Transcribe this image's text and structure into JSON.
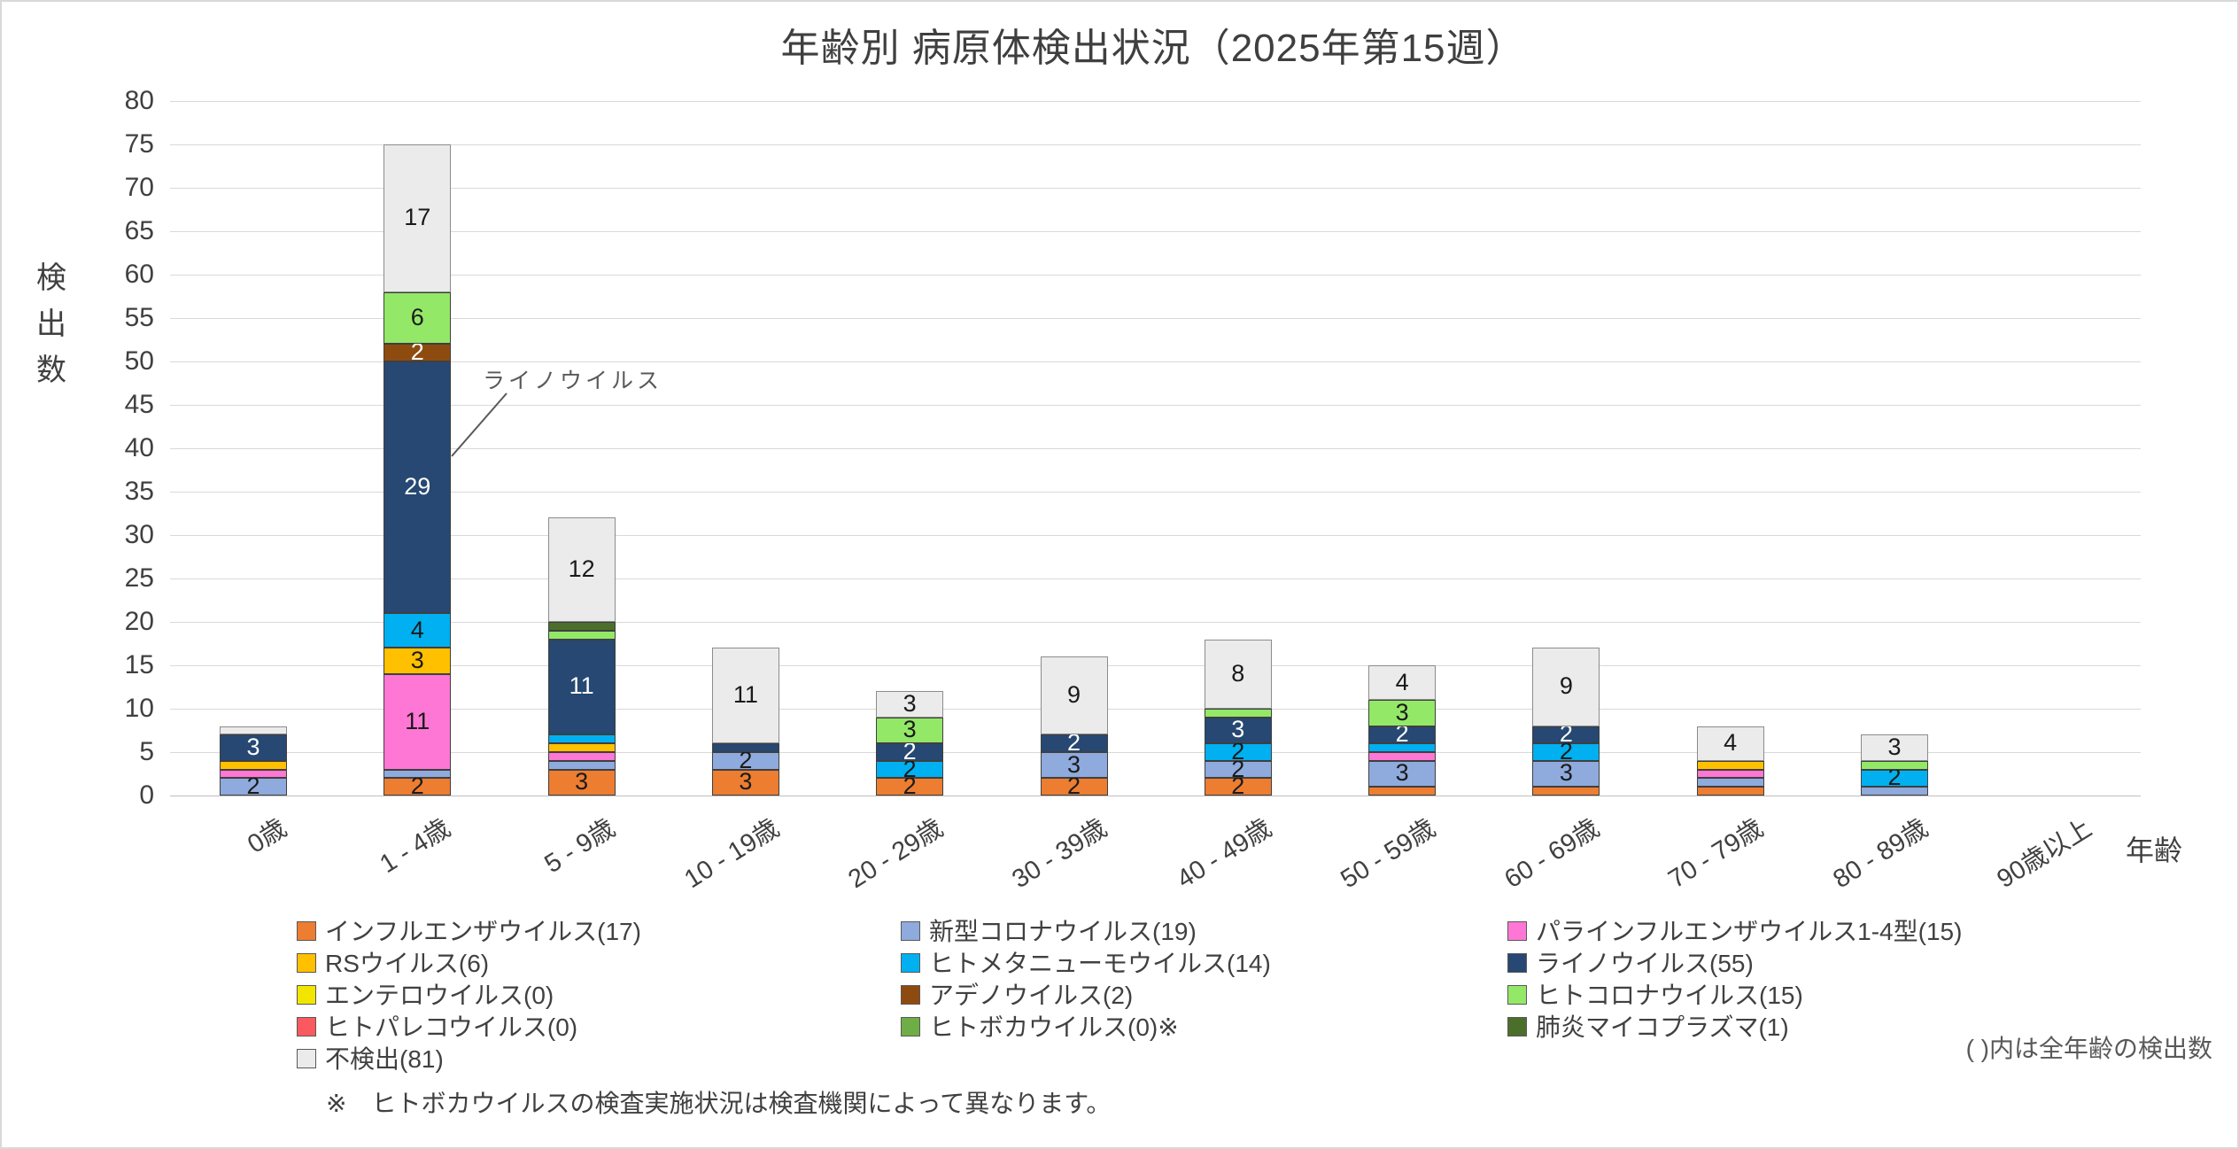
{
  "title": "年齢別 病原体検出状況（2025年第15週）",
  "y_axis": {
    "title": "検出数",
    "min": 0,
    "max": 80,
    "step": 5
  },
  "x_axis": {
    "title": "年齢"
  },
  "annotation": {
    "text": "ライノウイルス"
  },
  "notes": {
    "paren_note": "( )内は全年齢の検出数",
    "footnote": "※　ヒトボカウイルスの検査実施状況は検査機関によって異なります。"
  },
  "chart_data": {
    "type": "bar",
    "stacked": true,
    "title": "年齢別 病原体検出状況（2025年第15週）",
    "xlabel": "年齢",
    "ylabel": "検出数",
    "ylim": [
      0,
      80
    ],
    "ytick_step": 5,
    "grid": true,
    "legend_position": "bottom",
    "categories": [
      "0歳",
      "1 - 4歳",
      "5 - 9歳",
      "10 - 19歳",
      "20 - 29歳",
      "30 - 39歳",
      "40 - 49歳",
      "50 - 59歳",
      "60 - 69歳",
      "70 - 79歳",
      "80 - 89歳",
      "90歳以上"
    ],
    "series": [
      {
        "name": "インフルエンザウイルス",
        "legend_label": "インフルエンザウイルス(17)",
        "total": 17,
        "color": "#ED7D31",
        "text": "dark",
        "values": [
          0,
          2,
          3,
          3,
          2,
          2,
          2,
          1,
          1,
          1,
          0,
          0
        ]
      },
      {
        "name": "新型コロナウイルス",
        "legend_label": "新型コロナウイルス(19)",
        "total": 19,
        "color": "#8FAADC",
        "text": "dark",
        "values": [
          2,
          1,
          1,
          2,
          0,
          3,
          2,
          3,
          3,
          1,
          1,
          0
        ]
      },
      {
        "name": "パラインフルエンザウイルス1-4型",
        "legend_label": "パラインフルエンザウイルス1-4型(15)",
        "total": 15,
        "color": "#FF77D4",
        "text": "dark",
        "values": [
          1,
          11,
          1,
          0,
          0,
          0,
          0,
          1,
          0,
          1,
          0,
          0
        ]
      },
      {
        "name": "RSウイルス",
        "legend_label": "RSウイルス(6)",
        "total": 6,
        "color": "#FFC000",
        "text": "dark",
        "values": [
          1,
          3,
          1,
          0,
          0,
          0,
          0,
          0,
          0,
          1,
          0,
          0
        ]
      },
      {
        "name": "ヒトメタニューモウイルス",
        "legend_label": "ヒトメタニューモウイルス(14)",
        "total": 14,
        "color": "#00B0F0",
        "text": "dark",
        "values": [
          0,
          4,
          1,
          0,
          2,
          0,
          2,
          1,
          2,
          0,
          2,
          0
        ]
      },
      {
        "name": "ライノウイルス",
        "legend_label": "ライノウイルス(55)",
        "total": 55,
        "color": "#264872",
        "text": "white",
        "values": [
          3,
          29,
          11,
          1,
          2,
          2,
          3,
          2,
          2,
          0,
          0,
          0
        ]
      },
      {
        "name": "エンテロウイルス",
        "legend_label": "エンテロウイルス(0)",
        "total": 0,
        "color": "#F2E600",
        "text": "dark",
        "values": [
          0,
          0,
          0,
          0,
          0,
          0,
          0,
          0,
          0,
          0,
          0,
          0
        ]
      },
      {
        "name": "アデノウイルス",
        "legend_label": "アデノウイルス(2)",
        "total": 2,
        "color": "#8E4B10",
        "text": "white",
        "values": [
          0,
          2,
          0,
          0,
          0,
          0,
          0,
          0,
          0,
          0,
          0,
          0
        ]
      },
      {
        "name": "ヒトコロナウイルス",
        "legend_label": "ヒトコロナウイルス(15)",
        "total": 15,
        "color": "#93E868",
        "text": "dark",
        "values": [
          0,
          6,
          1,
          0,
          3,
          0,
          1,
          3,
          0,
          0,
          1,
          0
        ]
      },
      {
        "name": "ヒトパレコウイルス",
        "legend_label": "ヒトパレコウイルス(0)",
        "total": 0,
        "color": "#FA5A5F",
        "text": "dark",
        "values": [
          0,
          0,
          0,
          0,
          0,
          0,
          0,
          0,
          0,
          0,
          0,
          0
        ]
      },
      {
        "name": "ヒトボカウイルス",
        "legend_label": "ヒトボカウイルス(0)※",
        "total": 0,
        "color": "#6FAE46",
        "text": "dark",
        "values": [
          0,
          0,
          0,
          0,
          0,
          0,
          0,
          0,
          0,
          0,
          0,
          0
        ]
      },
      {
        "name": "肺炎マイコプラズマ",
        "legend_label": "肺炎マイコプラズマ(1)",
        "total": 1,
        "color": "#4C6E2B",
        "text": "white",
        "values": [
          0,
          0,
          1,
          0,
          0,
          0,
          0,
          0,
          0,
          0,
          0,
          0
        ]
      },
      {
        "name": "不検出",
        "legend_label": "不検出(81)",
        "total": 81,
        "color": "#EBEBEB",
        "text": "dark",
        "values": [
          1,
          17,
          12,
          11,
          3,
          9,
          8,
          4,
          9,
          4,
          3,
          0
        ]
      }
    ],
    "legend_columns": [
      [
        0,
        3,
        6,
        9,
        12
      ],
      [
        1,
        4,
        7,
        10
      ],
      [
        2,
        5,
        8,
        11
      ]
    ]
  }
}
